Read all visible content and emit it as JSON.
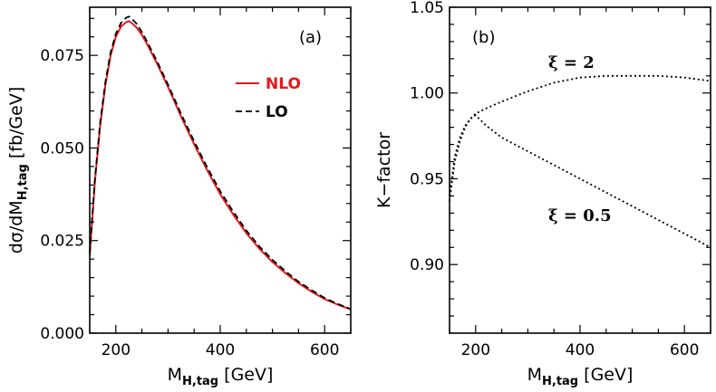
{
  "chart_data": [
    {
      "type": "line",
      "panel_label": "(a)",
      "xlabel": "M",
      "xlabel_sub": "H,tag",
      "xlabel_unit": " [GeV]",
      "ylabel_pre": "dσ/dM",
      "ylabel_sub": "H,tag",
      "ylabel_unit": " [fb/GeV]",
      "xlim": [
        150,
        650
      ],
      "ylim": [
        0,
        0.088
      ],
      "xticks": [
        200,
        400,
        600
      ],
      "xtick_labels": [
        "200",
        "400",
        "600"
      ],
      "yticks": [
        0,
        0.025,
        0.05,
        0.075
      ],
      "ytick_labels": [
        "0.000",
        "0.025",
        "0.050",
        "0.075"
      ],
      "legend_position": "top-right",
      "series": [
        {
          "name": "NLO",
          "color": "#e8161b",
          "style": "solid",
          "x": [
            150,
            160,
            170,
            180,
            190,
            200,
            210,
            220,
            225,
            230,
            240,
            250,
            260,
            280,
            300,
            325,
            350,
            375,
            400,
            425,
            450,
            475,
            500,
            525,
            550,
            575,
            600,
            625,
            650
          ],
          "y": [
            0.021,
            0.041,
            0.056,
            0.067,
            0.075,
            0.08,
            0.0828,
            0.084,
            0.0842,
            0.0838,
            0.0825,
            0.0805,
            0.078,
            0.0725,
            0.0665,
            0.0585,
            0.051,
            0.044,
            0.0375,
            0.032,
            0.027,
            0.0228,
            0.0192,
            0.0162,
            0.0135,
            0.0112,
            0.0092,
            0.0077,
            0.0064
          ]
        },
        {
          "name": "LO",
          "color": "#000000",
          "style": "dashed",
          "x": [
            150,
            160,
            170,
            180,
            190,
            200,
            210,
            220,
            225,
            230,
            240,
            250,
            260,
            280,
            300,
            325,
            350,
            375,
            400,
            425,
            450,
            475,
            500,
            525,
            550,
            575,
            600,
            625,
            650
          ],
          "y": [
            0.0215,
            0.0418,
            0.0568,
            0.0678,
            0.0758,
            0.0808,
            0.0838,
            0.0852,
            0.0855,
            0.085,
            0.0835,
            0.0813,
            0.0787,
            0.0731,
            0.0671,
            0.0592,
            0.0518,
            0.0448,
            0.0383,
            0.0328,
            0.0277,
            0.0234,
            0.0198,
            0.0167,
            0.0139,
            0.0116,
            0.0095,
            0.0079,
            0.0065
          ]
        }
      ]
    },
    {
      "type": "line",
      "panel_label": "(b)",
      "xlabel": "M",
      "xlabel_sub": "H,tag",
      "xlabel_unit": " [GeV]",
      "ylabel": "K−factor",
      "xlim": [
        150,
        650
      ],
      "ylim": [
        0.86,
        1.05
      ],
      "xticks": [
        200,
        400,
        600
      ],
      "xtick_labels": [
        "200",
        "400",
        "600"
      ],
      "yticks": [
        0.9,
        0.95,
        1.0,
        1.05
      ],
      "ytick_labels": [
        "0.90",
        "0.95",
        "1.00",
        "1.05"
      ],
      "series": [
        {
          "name": "ξ = 2",
          "color": "#000000",
          "style": "dotted",
          "x": [
            150,
            160,
            170,
            180,
            190,
            200,
            220,
            250,
            300,
            350,
            400,
            450,
            500,
            550,
            600,
            650
          ],
          "y": [
            0.94,
            0.963,
            0.974,
            0.981,
            0.985,
            0.988,
            0.991,
            0.995,
            1.001,
            1.006,
            1.009,
            1.01,
            1.01,
            1.01,
            1.009,
            1.007
          ]
        },
        {
          "name": "ξ = 0.5",
          "color": "#000000",
          "style": "dotted",
          "x": [
            150,
            160,
            170,
            180,
            190,
            200,
            220,
            250,
            300,
            350,
            400,
            450,
            500,
            550,
            600,
            650
          ],
          "y": [
            0.937,
            0.96,
            0.972,
            0.98,
            0.985,
            0.987,
            0.981,
            0.974,
            0.966,
            0.958,
            0.95,
            0.942,
            0.934,
            0.926,
            0.918,
            0.91
          ]
        }
      ]
    }
  ]
}
